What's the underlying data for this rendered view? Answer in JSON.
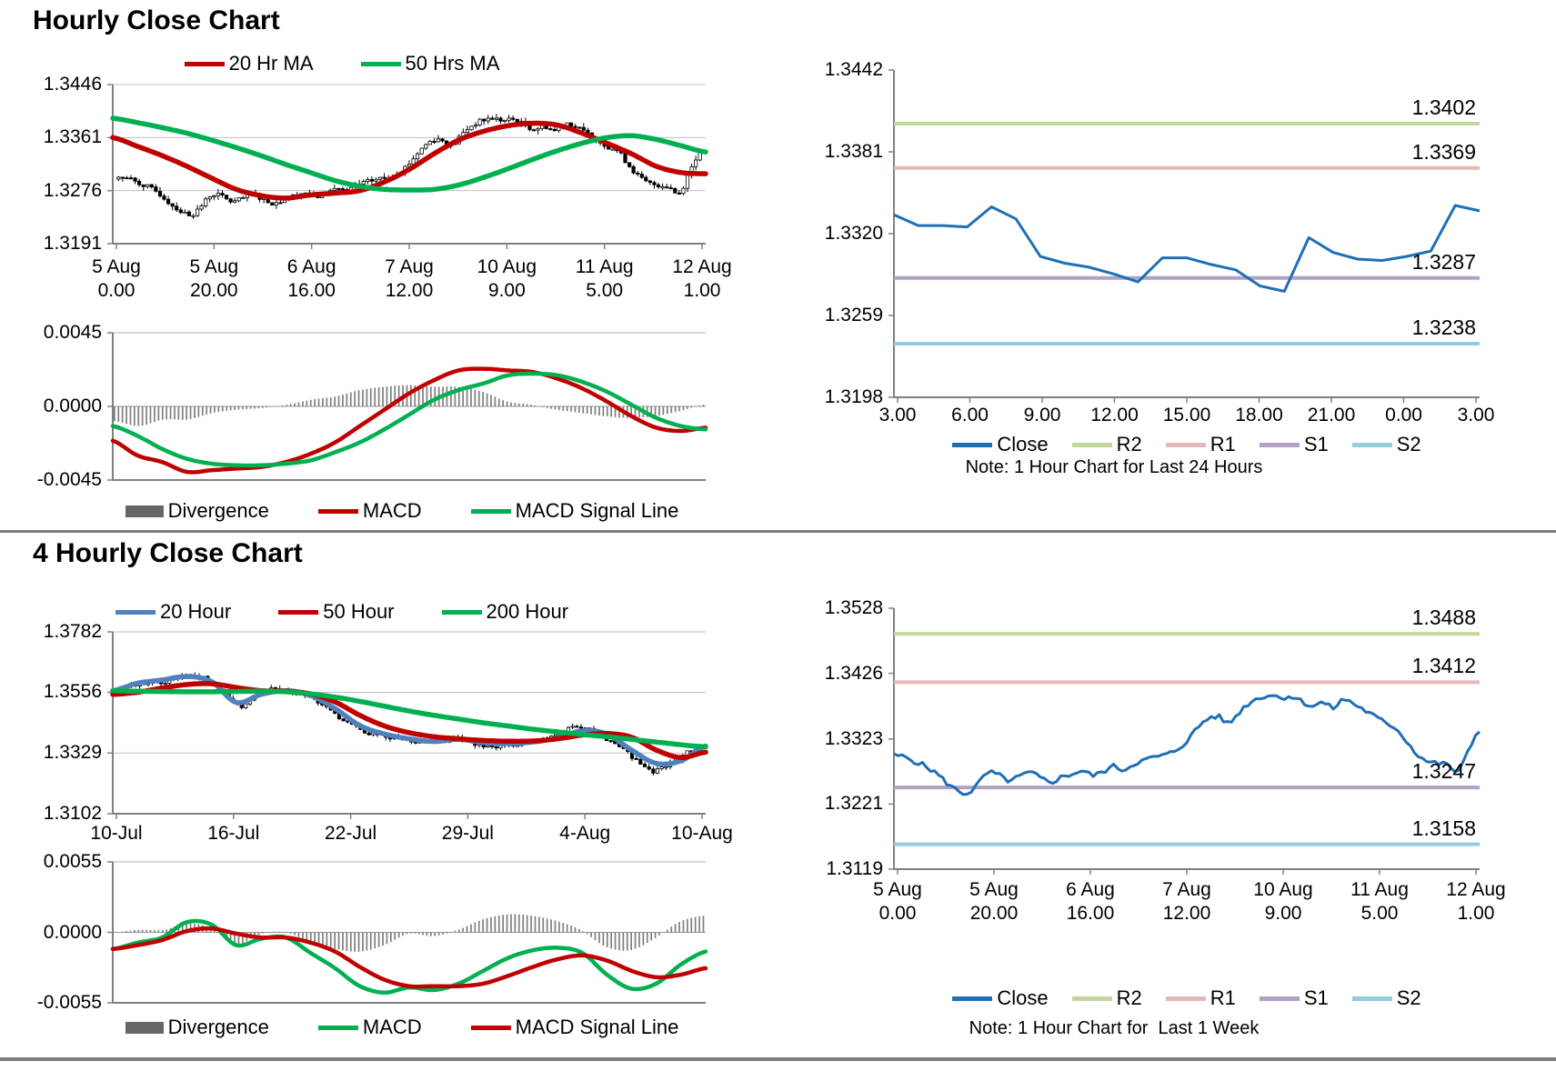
{
  "page": {
    "section1_title": "Hourly Close Chart",
    "section2_title": "4 Hourly Close Chart"
  },
  "colors": {
    "red": "#C00000",
    "green": "#00B050",
    "ma_blue": "#4F81BD",
    "close_blue": "#1F6FB5",
    "r2": "#C3D69B",
    "r1": "#E6B9B8",
    "s1": "#B2A1C7",
    "s2": "#92CDDC",
    "divergence": "#666666",
    "bar": "#7F7F7F",
    "grid": "#C0C0C0",
    "axis": "#808080",
    "text": "#000000"
  },
  "chart_data": [
    {
      "name": "hourly-close-candle-chart",
      "type": "candle",
      "title": "Hourly Close Chart",
      "ylim": [
        1.3191,
        1.3446
      ],
      "yticks": [
        [
          1.3446,
          "1.3446"
        ],
        [
          1.3361,
          "1.3361"
        ],
        [
          1.3276,
          "1.3276"
        ],
        [
          1.3191,
          "1.3191"
        ]
      ],
      "xlabels": [
        [
          "5 Aug",
          "0.00"
        ],
        [
          "5 Aug",
          "20.00"
        ],
        [
          "6 Aug",
          "16.00"
        ],
        [
          "7 Aug",
          "12.00"
        ],
        [
          "10 Aug",
          "9.00"
        ],
        [
          "11 Aug",
          "5.00"
        ],
        [
          "12 Aug",
          "1.00"
        ]
      ],
      "closes_anchors": [
        1.3297,
        1.3295,
        1.3288,
        1.328,
        1.327,
        1.3255,
        1.3243,
        1.3238,
        1.3252,
        1.327,
        1.3266,
        1.3258,
        1.3264,
        1.327,
        1.3262,
        1.3256,
        1.3263,
        1.3268,
        1.3273,
        1.3266,
        1.3272,
        1.328,
        1.3275,
        1.3285,
        1.329,
        1.3295,
        1.3298,
        1.3306,
        1.332,
        1.334,
        1.3355,
        1.3358,
        1.3348,
        1.3365,
        1.338,
        1.3388,
        1.3392,
        1.3388,
        1.339,
        1.3382,
        1.3375,
        1.338,
        1.3372,
        1.3385,
        1.3378,
        1.3368,
        1.3358,
        1.3348,
        1.334,
        1.332,
        1.33,
        1.3288,
        1.3285,
        1.3282,
        1.3272,
        1.3308,
        1.3338
      ],
      "candles": 141,
      "wick": 0.0007,
      "noise": 0.0004,
      "seed": 7,
      "ma": [
        {
          "name": "20 Hr MA",
          "color": "#C00000",
          "width": 5.5,
          "values": [
            1.3361,
            1.3347,
            1.3332,
            1.3315,
            1.3296,
            1.3278,
            1.3268,
            1.3264,
            1.3269,
            1.3272,
            1.3276,
            1.329,
            1.331,
            1.3335,
            1.3357,
            1.3371,
            1.338,
            1.3384,
            1.3381,
            1.3368,
            1.3352,
            1.3335,
            1.3315,
            1.3305,
            1.3303
          ]
        },
        {
          "name": "50 Hrs MA",
          "color": "#00B050",
          "width": 5.5,
          "values": [
            1.3392,
            1.3385,
            1.3377,
            1.3368,
            1.3357,
            1.3345,
            1.3332,
            1.3318,
            1.3305,
            1.3292,
            1.3283,
            1.3278,
            1.3277,
            1.3278,
            1.3285,
            1.3297,
            1.3311,
            1.3326,
            1.334,
            1.3352,
            1.3361,
            1.3364,
            1.3358,
            1.3348,
            1.3338
          ]
        }
      ],
      "legend": [
        {
          "label": "20 Hr MA",
          "color": "#C00000",
          "swatch": "line"
        },
        {
          "label": "50 Hrs MA",
          "color": "#00B050",
          "swatch": "line"
        }
      ]
    },
    {
      "name": "hourly-macd-chart",
      "type": "macd",
      "ylim": [
        -0.0045,
        0.0045
      ],
      "yticks": [
        [
          0.0045,
          "0.0045"
        ],
        [
          0,
          "0.0000"
        ],
        [
          -0.0045,
          "-0.0045"
        ]
      ],
      "macd": {
        "name": "MACD",
        "color": "#C00000",
        "values": [
          -0.0021,
          -0.003,
          -0.0034,
          -0.004,
          -0.0039,
          -0.0038,
          -0.0037,
          -0.0034,
          -0.0029,
          -0.0022,
          -0.0012,
          -0.0002,
          0.0008,
          0.0016,
          0.0022,
          0.0023,
          0.0022,
          0.0021,
          0.0017,
          0.0011,
          0.0003,
          -0.0006,
          -0.0013,
          -0.0015,
          -0.0013
        ]
      },
      "signal": {
        "name": "MACD Signal Line",
        "color": "#00B050",
        "values": [
          -0.0012,
          -0.0018,
          -0.0026,
          -0.0032,
          -0.0035,
          -0.0036,
          -0.0036,
          -0.0035,
          -0.0033,
          -0.0028,
          -0.0022,
          -0.0014,
          -0.0005,
          0.0004,
          0.001,
          0.0014,
          0.0019,
          0.002,
          0.0019,
          0.0015,
          0.0009,
          0.0001,
          -0.0007,
          -0.0012,
          -0.0014
        ]
      },
      "legend": [
        {
          "label": "Divergence",
          "color": "#666666",
          "swatch": "bar"
        },
        {
          "label": "MACD",
          "color": "#C00000",
          "swatch": "line"
        },
        {
          "label": "MACD Signal Line",
          "color": "#00B050",
          "swatch": "line"
        }
      ]
    },
    {
      "name": "last-24h-close-chart",
      "type": "line-levels",
      "note": "Note: 1 Hour Chart for Last 24 Hours",
      "ylim": [
        1.3198,
        1.3442
      ],
      "yticks": [
        [
          1.3442,
          "1.3442"
        ],
        [
          1.3381,
          "1.3381"
        ],
        [
          1.332,
          "1.3320"
        ],
        [
          1.3259,
          "1.3259"
        ],
        [
          1.3198,
          "1.3198"
        ]
      ],
      "xlabels": [
        "3.00",
        "6.00",
        "9.00",
        "12.00",
        "15.00",
        "18.00",
        "21.00",
        "0.00",
        "3.00"
      ],
      "close": {
        "name": "Close",
        "color": "#1F6FB5",
        "values": [
          1.3334,
          1.3326,
          1.3326,
          1.3325,
          1.334,
          1.3331,
          1.3303,
          1.3298,
          1.3295,
          1.329,
          1.3284,
          1.3302,
          1.3302,
          1.3297,
          1.3293,
          1.3281,
          1.3277,
          1.3317,
          1.3306,
          1.3301,
          1.33,
          1.3303,
          1.3307,
          1.3341,
          1.3337
        ],
        "samples": 25,
        "noise": 0,
        "seed": 3
      },
      "levels": [
        {
          "name": "R2",
          "label": "1.3402",
          "value": 1.3402,
          "color": "#C3D69B"
        },
        {
          "name": "R1",
          "label": "1.3369",
          "value": 1.3369,
          "color": "#E6B9B8"
        },
        {
          "name": "S1",
          "label": "1.3287",
          "value": 1.3287,
          "color": "#B2A1C7"
        },
        {
          "name": "S2",
          "label": "1.3238",
          "value": 1.3238,
          "color": "#92CDDC"
        }
      ],
      "legend": [
        {
          "label": "Close",
          "color": "#1F6FB5",
          "swatch": "line"
        },
        {
          "label": "R2",
          "color": "#C3D69B",
          "swatch": "line"
        },
        {
          "label": "R1",
          "color": "#E6B9B8",
          "swatch": "line"
        },
        {
          "label": "S1",
          "color": "#B2A1C7",
          "swatch": "line"
        },
        {
          "label": "S2",
          "color": "#92CDDC",
          "swatch": "line"
        }
      ]
    },
    {
      "name": "four-hourly-candle-chart",
      "type": "candle",
      "title": "4 Hourly Close Chart",
      "ylim": [
        1.3102,
        1.3782
      ],
      "yticks": [
        [
          1.3782,
          "1.3782"
        ],
        [
          1.3556,
          "1.3556"
        ],
        [
          1.3329,
          "1.3329"
        ],
        [
          1.3102,
          "1.3102"
        ]
      ],
      "xlabels": [
        [
          "10-Jul"
        ],
        [
          "16-Jul"
        ],
        [
          "22-Jul"
        ],
        [
          "29-Jul"
        ],
        [
          "4-Aug"
        ],
        [
          "10-Aug"
        ]
      ],
      "closes_anchors": [
        1.3565,
        1.359,
        1.3598,
        1.362,
        1.3585,
        1.3505,
        1.3562,
        1.3556,
        1.353,
        1.347,
        1.3415,
        1.339,
        1.3378,
        1.3365,
        1.3385,
        1.3355,
        1.336,
        1.3372,
        1.339,
        1.343,
        1.339,
        1.333,
        1.3262,
        1.33,
        1.3358
      ],
      "candles": 138,
      "wick": 0.0012,
      "noise": 0.0008,
      "seed": 11,
      "ma": [
        {
          "name": "20 Hour",
          "color": "#4F81BD",
          "width": 5.5,
          "values": [
            1.3562,
            1.359,
            1.3602,
            1.3615,
            1.3596,
            1.3518,
            1.3548,
            1.3562,
            1.3545,
            1.3495,
            1.3432,
            1.34,
            1.3382,
            1.3372,
            1.338,
            1.3368,
            1.3364,
            1.337,
            1.3385,
            1.3412,
            1.34,
            1.334,
            1.329,
            1.33,
            1.3355
          ]
        },
        {
          "name": "50 Hour",
          "color": "#C00000",
          "width": 5.5,
          "values": [
            1.3548,
            1.3556,
            1.3572,
            1.3585,
            1.3588,
            1.3574,
            1.3562,
            1.356,
            1.355,
            1.352,
            1.347,
            1.343,
            1.3405,
            1.339,
            1.3382,
            1.3376,
            1.3373,
            1.3374,
            1.3382,
            1.3396,
            1.3402,
            1.3388,
            1.334,
            1.3312,
            1.3332
          ]
        },
        {
          "name": "200 Hour",
          "color": "#00B050",
          "width": 5.5,
          "values": [
            1.3562,
            1.356,
            1.3559,
            1.3558,
            1.3558,
            1.3559,
            1.356,
            1.3558,
            1.355,
            1.3538,
            1.3522,
            1.3504,
            1.3486,
            1.347,
            1.3456,
            1.3442,
            1.343,
            1.3418,
            1.3408,
            1.3398,
            1.339,
            1.338,
            1.337,
            1.336,
            1.3352
          ]
        }
      ],
      "legend": [
        {
          "label": "20 Hour",
          "color": "#4F81BD",
          "swatch": "line"
        },
        {
          "label": "50 Hour",
          "color": "#C00000",
          "swatch": "line"
        },
        {
          "label": "200 Hour",
          "color": "#00B050",
          "swatch": "line"
        }
      ]
    },
    {
      "name": "four-hourly-macd-chart",
      "type": "macd",
      "ylim": [
        -0.0055,
        0.0055
      ],
      "yticks": [
        [
          0.0055,
          "0.0055"
        ],
        [
          0,
          "0.0000"
        ],
        [
          -0.0055,
          "-0.0055"
        ]
      ],
      "macd": {
        "name": "MACD",
        "color": "#00B050",
        "values": [
          -0.0013,
          -0.0008,
          -0.0004,
          0.0008,
          0.0006,
          -0.001,
          -0.0005,
          -0.0004,
          -0.0016,
          -0.0028,
          -0.0042,
          -0.0047,
          -0.0043,
          -0.0045,
          -0.004,
          -0.003,
          -0.002,
          -0.0014,
          -0.0012,
          -0.0016,
          -0.0033,
          -0.0044,
          -0.004,
          -0.0025,
          -0.0015
        ]
      },
      "signal": {
        "name": "MACD Signal Line",
        "color": "#C00000",
        "values": [
          -0.0013,
          -0.001,
          -0.0006,
          0.0001,
          0.0003,
          -0.0001,
          -0.0004,
          -0.0004,
          -0.0008,
          -0.0015,
          -0.0027,
          -0.0037,
          -0.0042,
          -0.0042,
          -0.0042,
          -0.004,
          -0.0034,
          -0.0027,
          -0.0021,
          -0.0018,
          -0.0022,
          -0.003,
          -0.0035,
          -0.0033,
          -0.0028
        ]
      },
      "legend": [
        {
          "label": "Divergence",
          "color": "#666666",
          "swatch": "bar"
        },
        {
          "label": "MACD",
          "color": "#00B050",
          "swatch": "line"
        },
        {
          "label": "MACD Signal Line",
          "color": "#C00000",
          "swatch": "line"
        }
      ]
    },
    {
      "name": "last-week-close-chart",
      "type": "line-levels",
      "note": "Note: 1 Hour Chart for  Last 1 Week",
      "ylim": [
        1.3119,
        1.3528
      ],
      "yticks": [
        [
          1.3528,
          "1.3528"
        ],
        [
          1.3426,
          "1.3426"
        ],
        [
          1.3323,
          "1.3323"
        ],
        [
          1.3221,
          "1.3221"
        ],
        [
          1.3119,
          "1.3119"
        ]
      ],
      "xlabels": [
        [
          "5 Aug",
          "0.00"
        ],
        [
          "5 Aug",
          "20.00"
        ],
        [
          "6 Aug",
          "16.00"
        ],
        [
          "7 Aug",
          "12.00"
        ],
        [
          "10 Aug",
          "9.00"
        ],
        [
          "11 Aug",
          "5.00"
        ],
        [
          "12 Aug",
          "1.00"
        ]
      ],
      "close": {
        "name": "Close",
        "color": "#1F6FB5",
        "values": [
          1.3297,
          1.3295,
          1.3288,
          1.328,
          1.327,
          1.3255,
          1.3243,
          1.3238,
          1.3252,
          1.327,
          1.3266,
          1.3258,
          1.3264,
          1.327,
          1.3262,
          1.3256,
          1.3263,
          1.3268,
          1.3273,
          1.3266,
          1.3272,
          1.328,
          1.3275,
          1.3285,
          1.329,
          1.3295,
          1.3298,
          1.3306,
          1.332,
          1.334,
          1.3355,
          1.3358,
          1.3348,
          1.3365,
          1.338,
          1.3388,
          1.3392,
          1.3388,
          1.339,
          1.3382,
          1.3375,
          1.338,
          1.3372,
          1.3385,
          1.3378,
          1.3368,
          1.3358,
          1.3348,
          1.334,
          1.332,
          1.33,
          1.3288,
          1.3285,
          1.3282,
          1.3272,
          1.3308,
          1.3338
        ],
        "samples": 145,
        "noise": 0.0004,
        "seed": 5
      },
      "levels": [
        {
          "name": "R2",
          "label": "1.3488",
          "value": 1.3488,
          "color": "#C3D69B"
        },
        {
          "name": "R1",
          "label": "1.3412",
          "value": 1.3412,
          "color": "#E6B9B8"
        },
        {
          "name": "S1",
          "label": "1.3247",
          "value": 1.3247,
          "color": "#B2A1C7"
        },
        {
          "name": "S2",
          "label": "1.3158",
          "value": 1.3158,
          "color": "#92CDDC"
        }
      ],
      "legend": [
        {
          "label": "Close",
          "color": "#1F6FB5",
          "swatch": "line"
        },
        {
          "label": "R2",
          "color": "#C3D69B",
          "swatch": "line"
        },
        {
          "label": "R1",
          "color": "#E6B9B8",
          "swatch": "line"
        },
        {
          "label": "S1",
          "color": "#B2A1C7",
          "swatch": "line"
        },
        {
          "label": "S2",
          "color": "#92CDDC",
          "swatch": "line"
        }
      ]
    }
  ]
}
